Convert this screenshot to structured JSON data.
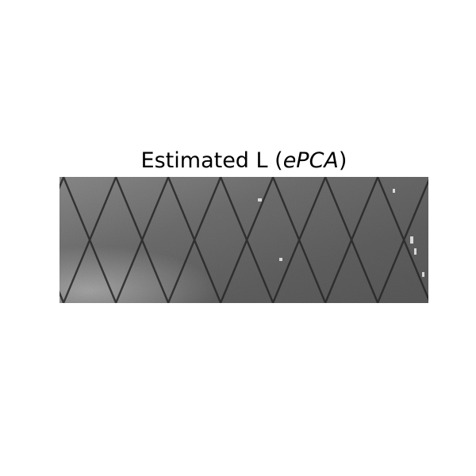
{
  "figure": {
    "title_main": "Estimated L (",
    "title_method": "ePCA",
    "title_close": ")",
    "image_description_name": "grayscale-texture-image",
    "colors": {
      "background": "#ffffff",
      "title": "#000000"
    }
  }
}
